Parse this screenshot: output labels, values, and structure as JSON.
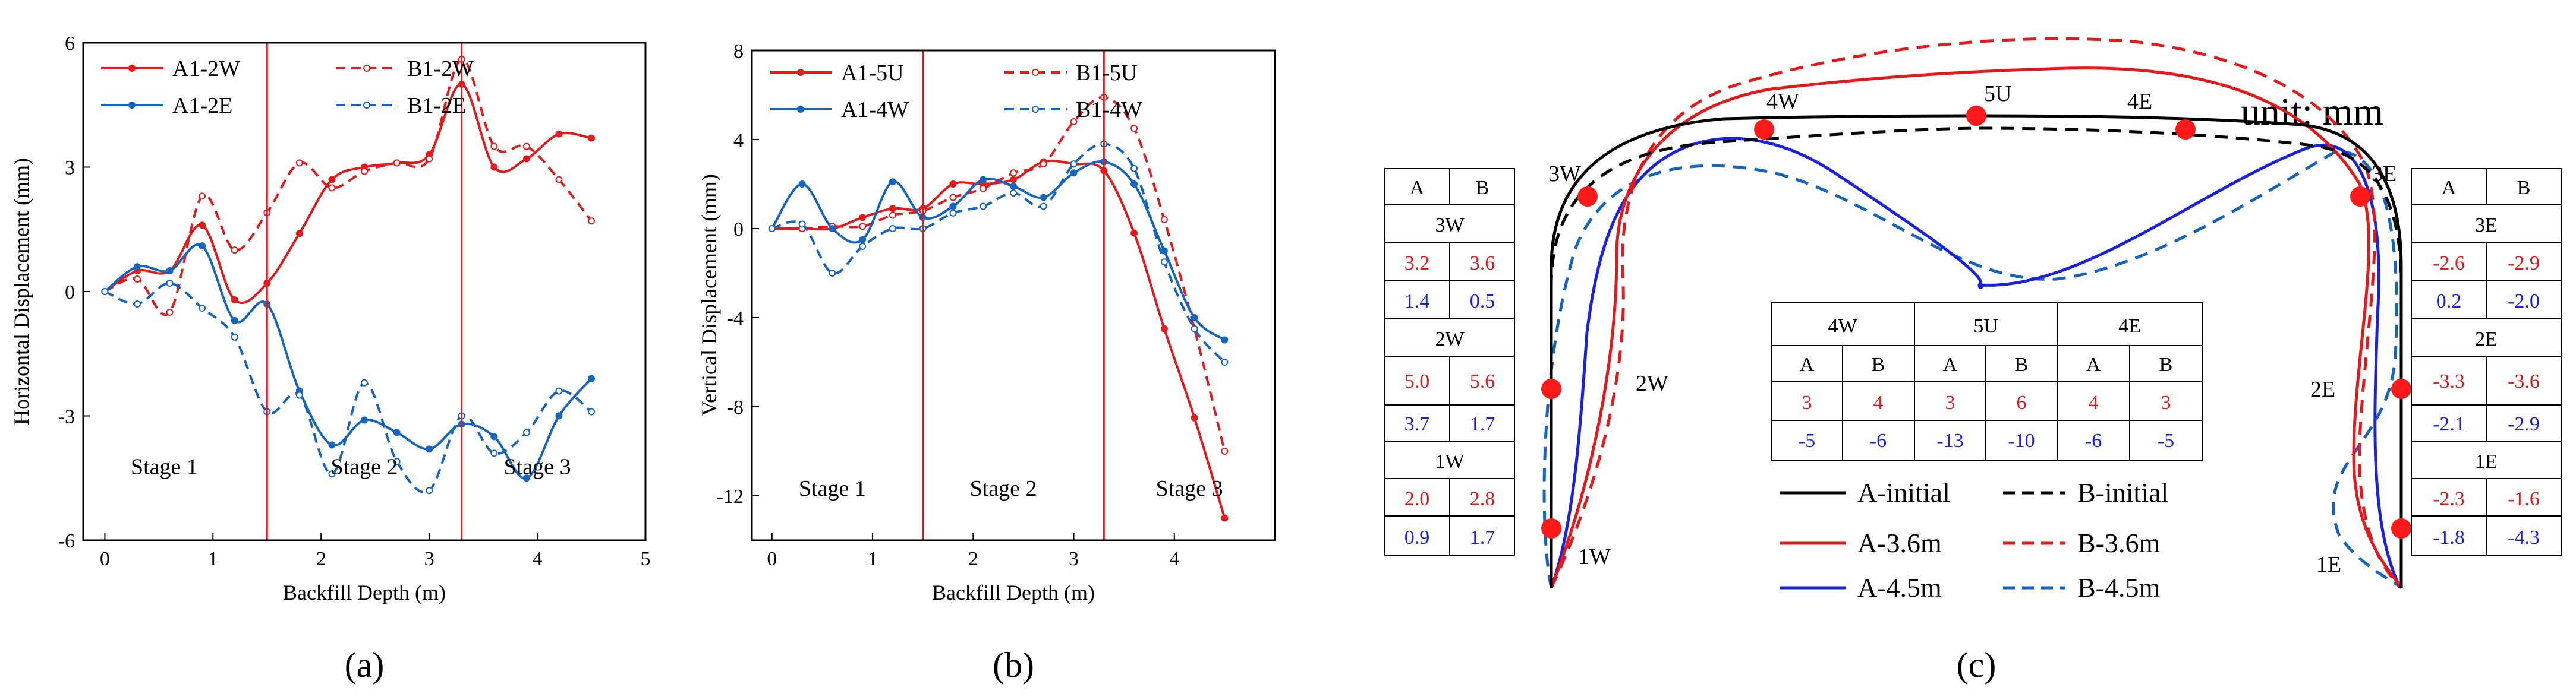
{
  "figure": {
    "unit_label": "unit: mm",
    "panel_labels": [
      "(a)",
      "(b)",
      "(c)"
    ],
    "colors": {
      "A": "#e31a1c",
      "B": "#e31a1c",
      "blue": "#1565c0",
      "initial": "#000000"
    }
  },
  "chart_data": [
    {
      "type": "line",
      "id": "a",
      "title": "",
      "xlabel": "Backfill Depth (m)",
      "ylabel": "Horizontal Displacement (mm)",
      "xlim": [
        -0.2,
        5
      ],
      "ylim": [
        -6,
        6
      ],
      "xticks": [
        0,
        1,
        2,
        3,
        4,
        5
      ],
      "yticks": [
        -6,
        -3,
        0,
        3,
        6
      ],
      "stage_lines": [
        1.5,
        3.3
      ],
      "stages": [
        {
          "label": "Stage 1",
          "x": 0.55,
          "y": -4.4
        },
        {
          "label": "Stage 2",
          "x": 2.4,
          "y": -4.4
        },
        {
          "label": "Stage 3",
          "x": 4.0,
          "y": -4.4
        }
      ],
      "series": [
        {
          "name": "A1-2W",
          "color": "#e31a1c",
          "dash": false,
          "x": [
            0,
            0.3,
            0.6,
            0.9,
            1.2,
            1.5,
            1.8,
            2.1,
            2.4,
            2.7,
            3.0,
            3.3,
            3.6,
            3.9,
            4.2,
            4.5
          ],
          "y": [
            0,
            0.5,
            0.5,
            1.6,
            -0.2,
            0.2,
            1.4,
            2.7,
            3.0,
            3.1,
            3.3,
            5.0,
            3.0,
            3.2,
            3.8,
            3.7
          ]
        },
        {
          "name": "B1-2W",
          "color": "#e31a1c",
          "dash": true,
          "x": [
            0,
            0.3,
            0.6,
            0.9,
            1.2,
            1.5,
            1.8,
            2.1,
            2.4,
            2.7,
            3.0,
            3.3,
            3.6,
            3.9,
            4.2,
            4.5
          ],
          "y": [
            0,
            0.3,
            -0.5,
            2.3,
            1.0,
            1.9,
            3.1,
            2.5,
            2.9,
            3.1,
            3.2,
            5.6,
            3.5,
            3.5,
            2.7,
            1.7
          ]
        },
        {
          "name": "A1-2E",
          "color": "#1565c0",
          "dash": false,
          "x": [
            0,
            0.3,
            0.6,
            0.9,
            1.2,
            1.5,
            1.8,
            2.1,
            2.4,
            2.7,
            3.0,
            3.3,
            3.6,
            3.9,
            4.2,
            4.5
          ],
          "y": [
            0,
            0.6,
            0.5,
            1.1,
            -0.7,
            -0.3,
            -2.4,
            -3.7,
            -3.1,
            -3.4,
            -3.8,
            -3.2,
            -3.5,
            -4.5,
            -3.0,
            -2.1
          ]
        },
        {
          "name": "B1-2E",
          "color": "#1565c0",
          "dash": true,
          "x": [
            0,
            0.3,
            0.6,
            0.9,
            1.2,
            1.5,
            1.8,
            2.1,
            2.4,
            2.7,
            3.0,
            3.3,
            3.6,
            3.9,
            4.2,
            4.5
          ],
          "y": [
            0,
            -0.3,
            0.2,
            -0.4,
            -1.1,
            -2.9,
            -2.5,
            -4.4,
            -2.2,
            -4.1,
            -4.8,
            -3.0,
            -3.9,
            -3.4,
            -2.4,
            -2.9
          ]
        }
      ]
    },
    {
      "type": "line",
      "id": "b",
      "title": "",
      "xlabel": "Backfill Depth (m)",
      "ylabel": "Vertical Displacement (mm)",
      "xlim": [
        -0.2,
        5
      ],
      "ylim": [
        -14,
        8
      ],
      "xticks": [
        0,
        1,
        2,
        3,
        4
      ],
      "yticks": [
        -12,
        -8,
        -4,
        0,
        4,
        8
      ],
      "stage_lines": [
        1.5,
        3.3
      ],
      "stages": [
        {
          "label": "Stage 1",
          "x": 0.6,
          "y": -12.0
        },
        {
          "label": "Stage 2",
          "x": 2.3,
          "y": -12.0
        },
        {
          "label": "Stage 3",
          "x": 4.15,
          "y": -12.0
        }
      ],
      "series": [
        {
          "name": "A1-5U",
          "color": "#e31a1c",
          "dash": false,
          "x": [
            0,
            0.3,
            0.6,
            0.9,
            1.2,
            1.5,
            1.8,
            2.1,
            2.4,
            2.7,
            3.0,
            3.3,
            3.6,
            3.9,
            4.2,
            4.5
          ],
          "y": [
            0,
            0,
            0,
            0.5,
            0.9,
            0.9,
            2.0,
            2.0,
            2.2,
            3.0,
            2.9,
            2.6,
            -0.2,
            -4.5,
            -8.5,
            -13.0
          ]
        },
        {
          "name": "B1-5U",
          "color": "#e31a1c",
          "dash": true,
          "x": [
            0,
            0.3,
            0.6,
            0.9,
            1.2,
            1.5,
            1.8,
            2.1,
            2.4,
            2.7,
            3.0,
            3.3,
            3.6,
            3.9,
            4.2,
            4.5
          ],
          "y": [
            0,
            0,
            0.1,
            0.1,
            0.6,
            0.8,
            1.4,
            1.8,
            2.5,
            2.9,
            4.8,
            5.9,
            4.5,
            0.4,
            -4.5,
            -10.0
          ]
        },
        {
          "name": "A1-4W",
          "color": "#1565c0",
          "dash": false,
          "x": [
            0,
            0.3,
            0.6,
            0.9,
            1.2,
            1.5,
            1.8,
            2.1,
            2.4,
            2.7,
            3.0,
            3.3,
            3.6,
            3.9,
            4.2,
            4.5
          ],
          "y": [
            0,
            2.0,
            0.0,
            -0.5,
            2.1,
            0.5,
            1.0,
            2.2,
            1.9,
            1.4,
            2.5,
            3.0,
            2.0,
            -1.0,
            -4.0,
            -5.0
          ]
        },
        {
          "name": "B1-4W",
          "color": "#1565c0",
          "dash": true,
          "x": [
            0,
            0.3,
            0.6,
            0.9,
            1.2,
            1.5,
            1.8,
            2.1,
            2.4,
            2.7,
            3.0,
            3.3,
            3.6,
            3.9,
            4.2,
            4.5
          ],
          "y": [
            0,
            0.2,
            -2.0,
            -0.8,
            0.0,
            0.0,
            0.7,
            1.0,
            1.6,
            1.0,
            2.9,
            3.8,
            2.7,
            -1.5,
            -4.5,
            -6.0
          ]
        }
      ]
    }
  ],
  "panel_c": {
    "unit": "unit: mm",
    "point_labels": [
      "1W",
      "2W",
      "3W",
      "4W",
      "5U",
      "4E",
      "3E",
      "2E",
      "1E"
    ],
    "legend": [
      "A-initial",
      "B-initial",
      "A-3.6m",
      "B-3.6m",
      "A-4.5m",
      "B-4.5m"
    ],
    "west_table": {
      "header": [
        "A",
        "B"
      ],
      "groups": [
        {
          "label": "3W",
          "red": [
            "3.2",
            "3.6"
          ],
          "blue": [
            "1.4",
            "0.5"
          ]
        },
        {
          "label": "2W",
          "red": [
            "5.0",
            "5.6"
          ],
          "blue": [
            "3.7",
            "1.7"
          ]
        },
        {
          "label": "1W",
          "red": [
            "2.0",
            "2.8"
          ],
          "blue": [
            "0.9",
            "1.7"
          ]
        }
      ]
    },
    "east_table": {
      "header": [
        "A",
        "B"
      ],
      "groups": [
        {
          "label": "3E",
          "red": [
            "-2.6",
            "-2.9"
          ],
          "blue": [
            "0.2",
            "-2.0"
          ]
        },
        {
          "label": "2E",
          "red": [
            "-3.3",
            "-3.6"
          ],
          "blue": [
            "-2.1",
            "-2.9"
          ]
        },
        {
          "label": "1E",
          "red": [
            "-2.3",
            "-1.6"
          ],
          "blue": [
            "-1.8",
            "-4.3"
          ]
        }
      ]
    },
    "top_table": {
      "groups": [
        "4W",
        "5U",
        "4E"
      ],
      "sub": [
        "A",
        "B",
        "A",
        "B",
        "A",
        "B"
      ],
      "red": [
        "3",
        "4",
        "3",
        "6",
        "4",
        "3"
      ],
      "blue": [
        "-5",
        "-6",
        "-13",
        "-10",
        "-6",
        "-5"
      ]
    }
  }
}
